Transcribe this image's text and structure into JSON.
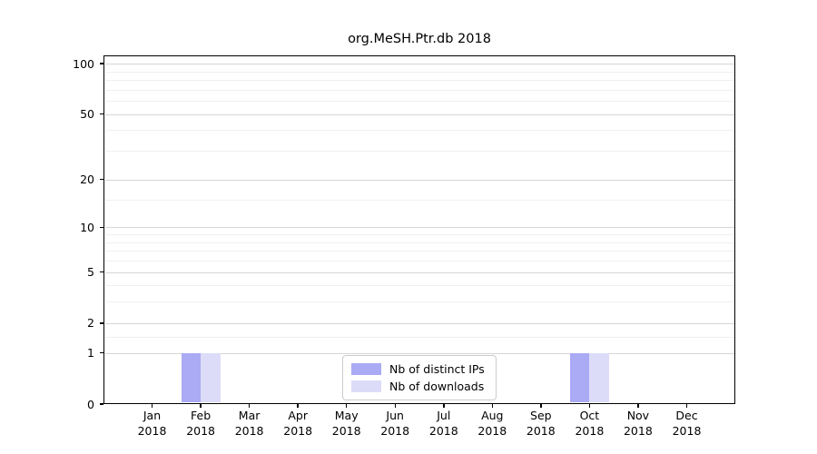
{
  "title": "org.MeSH.Ptr.db 2018",
  "chart_data": {
    "type": "bar",
    "title": "org.MeSH.Ptr.db 2018",
    "categories": [
      "Jan 2018",
      "Feb 2018",
      "Mar 2018",
      "Apr 2018",
      "May 2018",
      "Jun 2018",
      "Jul 2018",
      "Aug 2018",
      "Sep 2018",
      "Oct 2018",
      "Nov 2018",
      "Dec 2018"
    ],
    "series": [
      {
        "name": "Nb of distinct IPs",
        "color": "#aaaaf5",
        "values": [
          0,
          1,
          0,
          0,
          0,
          0,
          0,
          0,
          0,
          1,
          0,
          0
        ]
      },
      {
        "name": "Nb of downloads",
        "color": "#dcdcf8",
        "values": [
          0,
          1,
          0,
          0,
          0,
          0,
          0,
          0,
          0,
          1,
          0,
          0
        ]
      }
    ],
    "xlabel": "",
    "ylabel": "",
    "yscale": "log1p",
    "ylim": [
      0,
      112
    ],
    "yticks": [
      0,
      1,
      2,
      5,
      10,
      20,
      50,
      100
    ],
    "yticks_minor": [
      1.5,
      3,
      4,
      6,
      7,
      8,
      9,
      15,
      30,
      40,
      60,
      70,
      80,
      90
    ],
    "grid": "horizontal",
    "legend_position": "lower-center-inside",
    "colors": {
      "grid_major": "#d6d6d6",
      "grid_minor": "#f0f0f0",
      "axis": "#000000",
      "legend_border": "#cccccc"
    }
  }
}
